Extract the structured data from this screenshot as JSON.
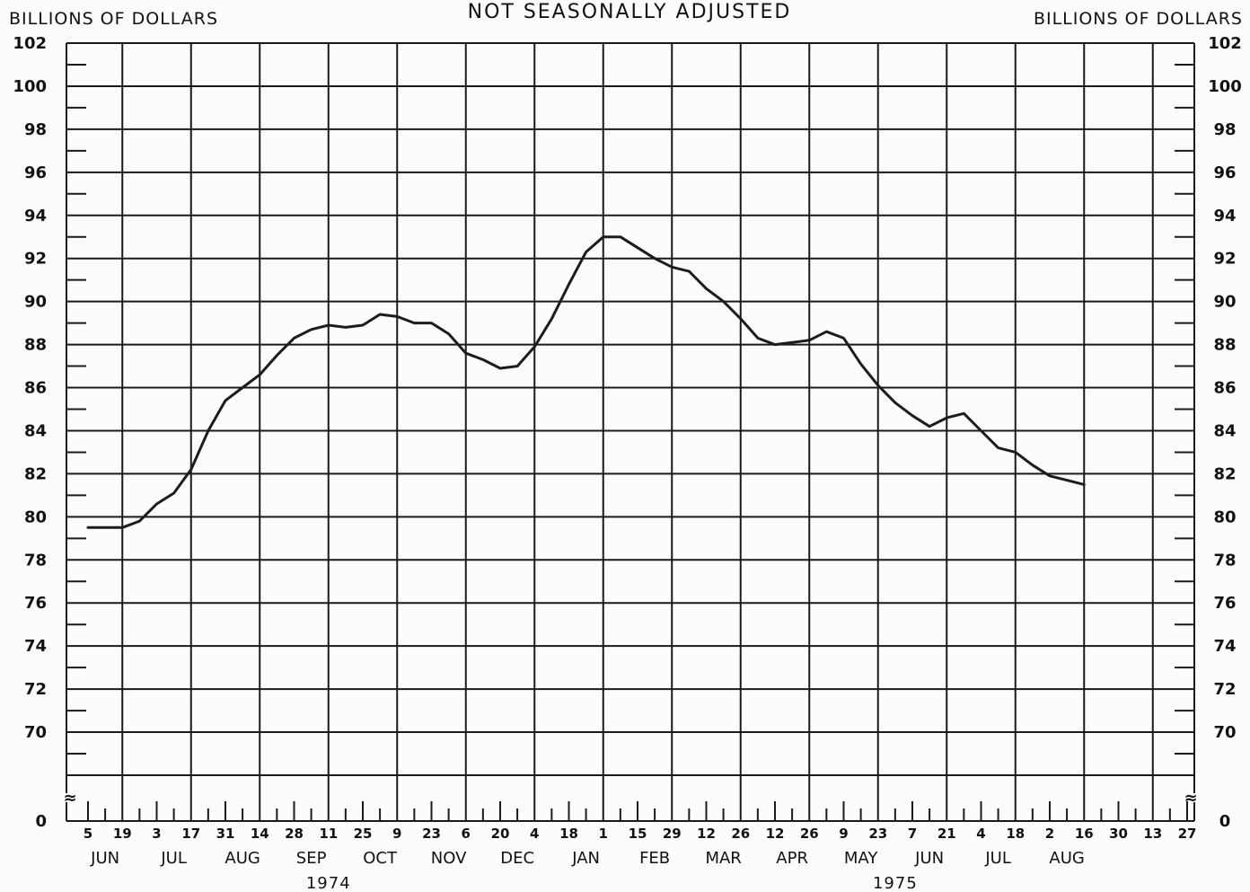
{
  "chart_data": {
    "type": "line",
    "title": "NOT SEASONALLY ADJUSTED",
    "ylabel_left": "BILLIONS OF DOLLARS",
    "ylabel_right": "BILLIONS OF DOLLARS",
    "ylim": [
      68,
      102
    ],
    "y_ticks": [
      "0",
      "70",
      "72",
      "74",
      "76",
      "78",
      "80",
      "82",
      "84",
      "86",
      "88",
      "90",
      "92",
      "94",
      "96",
      "98",
      "100",
      "102"
    ],
    "axis_break": "≈",
    "grid": true,
    "x_day_ticks": [
      "5",
      "19",
      "3",
      "17",
      "31",
      "14",
      "28",
      "11",
      "25",
      "9",
      "23",
      "6",
      "20",
      "4",
      "18",
      "1",
      "15",
      "29",
      "12",
      "26",
      "12",
      "26",
      "9",
      "23",
      "7",
      "21",
      "4",
      "18",
      "2",
      "16",
      "30",
      "13",
      "27"
    ],
    "x_months": [
      "JUN",
      "JUL",
      "AUG",
      "SEP",
      "OCT",
      "NOV",
      "DEC",
      "JAN",
      "FEB",
      "MAR",
      "APR",
      "MAY",
      "JUN",
      "JUL",
      "AUG"
    ],
    "x_years": [
      "1974",
      "1975"
    ],
    "series": [
      {
        "x": [
          "1974-06-05",
          "1974-06-12",
          "1974-06-19",
          "1974-06-26",
          "1974-07-03",
          "1974-07-10",
          "1974-07-17",
          "1974-07-24",
          "1974-07-31",
          "1974-08-07",
          "1974-08-14",
          "1974-08-21",
          "1974-08-28",
          "1974-09-04",
          "1974-09-11",
          "1974-09-18",
          "1974-09-25",
          "1974-10-02",
          "1974-10-09",
          "1974-10-16",
          "1974-10-23",
          "1974-10-30",
          "1974-11-06",
          "1974-11-13",
          "1974-11-20",
          "1974-11-27",
          "1974-12-04",
          "1974-12-11",
          "1974-12-18",
          "1974-12-25",
          "1975-01-01",
          "1975-01-08",
          "1975-01-15",
          "1975-01-22",
          "1975-01-29",
          "1975-02-05",
          "1975-02-12",
          "1975-02-19",
          "1975-02-26",
          "1975-03-05",
          "1975-03-12",
          "1975-03-19",
          "1975-03-26",
          "1975-04-02",
          "1975-04-09",
          "1975-04-16",
          "1975-04-23",
          "1975-04-30",
          "1975-05-07",
          "1975-05-14",
          "1975-05-21",
          "1975-05-28",
          "1975-06-04",
          "1975-06-11",
          "1975-06-18",
          "1975-06-25",
          "1975-07-02",
          "1975-07-09",
          "1975-07-16"
        ],
        "values": [
          79.5,
          79.5,
          79.5,
          79.8,
          80.6,
          81.1,
          82.2,
          84.0,
          85.4,
          86.0,
          86.6,
          87.5,
          88.3,
          88.7,
          88.9,
          88.8,
          88.9,
          89.4,
          89.3,
          89.0,
          89.0,
          88.5,
          87.6,
          87.3,
          86.9,
          87.0,
          87.9,
          89.2,
          90.8,
          92.3,
          93.0,
          93.0,
          92.5,
          92.0,
          91.6,
          91.4,
          90.6,
          90.0,
          89.2,
          88.3,
          88.0,
          88.1,
          88.2,
          88.6,
          88.3,
          87.1,
          86.1,
          85.3,
          84.7,
          84.2,
          84.6,
          84.8,
          84.0,
          83.2,
          83.0,
          82.4,
          81.9,
          81.7,
          81.5
        ]
      }
    ]
  }
}
